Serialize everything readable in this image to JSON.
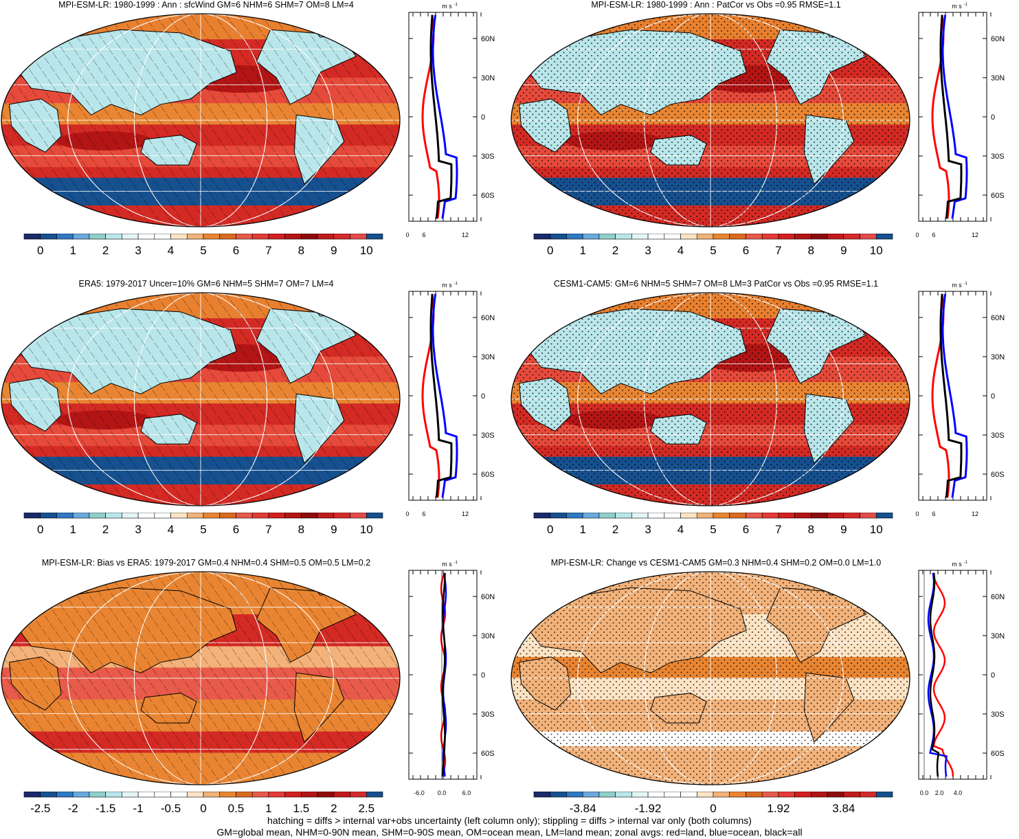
{
  "panels": [
    {
      "title": "MPI-ESM-LR: 1980-1999 : Ann : sfcWind GM=6 NHM=6 SHM=7 OM=8 LM=4",
      "pattern": "hatch",
      "kind": "abs",
      "cbar": {
        "labels": [
          "0",
          "1",
          "2",
          "3",
          "4",
          "5",
          "6",
          "7",
          "8",
          "9",
          "10"
        ]
      },
      "zonal": {
        "unit": "m s-1",
        "x_ticks": [
          "0",
          "6",
          "12"
        ],
        "y_ticks": [
          "60N",
          "30N",
          "0",
          "30S",
          "60S"
        ],
        "type": "abs"
      }
    },
    {
      "title": "MPI-ESM-LR: 1980-1999 : Ann : PatCor vs Obs =0.95 RMSE=1.1",
      "pattern": "dots",
      "kind": "abs",
      "cbar": {
        "labels": [
          "0",
          "1",
          "2",
          "3",
          "4",
          "5",
          "6",
          "7",
          "8",
          "9",
          "10"
        ]
      },
      "zonal": {
        "unit": "m s-1",
        "x_ticks": [
          "0",
          "6",
          "12"
        ],
        "y_ticks": [
          "60N",
          "30N",
          "0",
          "30S",
          "60S"
        ],
        "type": "abs"
      }
    },
    {
      "title": "ERA5: 1979-2017 Uncer=10% GM=6 NHM=5 SHM=7 OM=7 LM=4",
      "pattern": "hatch",
      "kind": "abs",
      "cbar": {
        "labels": [
          "0",
          "1",
          "2",
          "3",
          "4",
          "5",
          "6",
          "7",
          "8",
          "9",
          "10"
        ]
      },
      "zonal": {
        "unit": "m s-1",
        "x_ticks": [
          "0",
          "6",
          "12"
        ],
        "y_ticks": [
          "60N",
          "30N",
          "0",
          "30S",
          "60S"
        ],
        "type": "abs"
      }
    },
    {
      "title": "CESM1-CAM5: GM=6 NHM=5 SHM=7 OM=8 LM=3 PatCor vs Obs =0.95 RMSE=1.1",
      "pattern": "dots",
      "kind": "abs",
      "cbar": {
        "labels": [
          "0",
          "1",
          "2",
          "3",
          "4",
          "5",
          "6",
          "7",
          "8",
          "9",
          "10"
        ]
      },
      "zonal": {
        "unit": "m s-1",
        "x_ticks": [
          "0",
          "6",
          "12"
        ],
        "y_ticks": [
          "60N",
          "30N",
          "0",
          "30S",
          "60S"
        ],
        "type": "abs"
      }
    },
    {
      "title": "MPI-ESM-LR: Bias vs ERA5: 1979-2017 GM=0.4 NHM=0.4 SHM=0.5 OM=0.5 LM=0.2",
      "pattern": "hatch",
      "kind": "bias",
      "cbar": {
        "labels": [
          "-2.5",
          "-2",
          "-1.5",
          "-1",
          "-0.5",
          "0",
          "0.5",
          "1",
          "1.5",
          "2",
          "2.5"
        ]
      },
      "zonal": {
        "unit": "m s-1",
        "x_ticks": [
          "-6.0",
          "0.0",
          "6.0"
        ],
        "y_ticks": [
          "60N",
          "30N",
          "0",
          "30S",
          "60S"
        ],
        "type": "bias"
      }
    },
    {
      "title": "MPI-ESM-LR: Change vs CESM1-CAM5 GM=0.3 NHM=0.4 SHM=0.2 OM=0.0 LM=1.0",
      "pattern": "dots",
      "kind": "change",
      "cbar": {
        "labels": [
          "-3.84",
          "-1.92",
          "0",
          "1.92",
          "3.84"
        ]
      },
      "zonal": {
        "unit": "m s-1",
        "x_ticks": [
          "0.0",
          "2.0",
          "4.0"
        ],
        "y_ticks": [
          "60N",
          "30N",
          "0",
          "30S",
          "60S"
        ],
        "type": "change"
      }
    }
  ],
  "footer": {
    "line1": "hatching = diffs > internal var+obs uncertainty (left column only); stippling = diffs > internal var only (both columns)",
    "line2": "GM=global mean, NHM=0-90N mean, SHM=0-90S mean, OM=ocean mean, LM=land mean; zonal avgs: red=land, blue=ocean, black=all"
  },
  "colors": {
    "abs_scale": [
      "#1a2a6c",
      "#16508f",
      "#2f79c3",
      "#6aa9dd",
      "#8fcfc9",
      "#b9e6ea",
      "#e3f5f5",
      "#ffffff",
      "#ffffff",
      "#fbe3c3",
      "#f2b27a",
      "#e98532",
      "#d96a22",
      "#e85a4a",
      "#e63a36",
      "#d41f1f",
      "#b31515",
      "#8e0c0c",
      "#c21b1b",
      "#d62a2a",
      "#e64a4a",
      "#16508f"
    ],
    "bias_scale": [
      "#1a2a6c",
      "#16508f",
      "#2f79c3",
      "#6aa9dd",
      "#8fcfc9",
      "#b9e6ea",
      "#e3f5f5",
      "#ffffff",
      "#ffffff",
      "#fbe3c3",
      "#f2b27a",
      "#e98532",
      "#d96a22",
      "#e85a4a",
      "#e63a36",
      "#d41f1f",
      "#b31515",
      "#8e0c0c",
      "#c21b1b",
      "#d62a2a",
      "#e64a4a",
      "#16508f"
    ],
    "land": "red",
    "ocean": "blue",
    "all": "black"
  }
}
